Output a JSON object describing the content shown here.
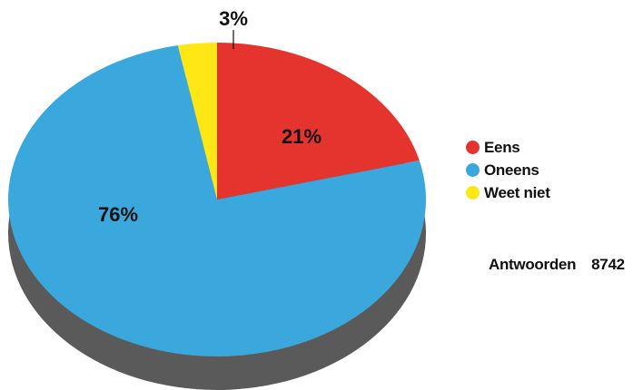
{
  "chart_data": {
    "type": "pie",
    "style": "3d",
    "slices": [
      {
        "label": "Eens",
        "value": 21,
        "display": "21%",
        "color": "#e5342d"
      },
      {
        "label": "Oneens",
        "value": 76,
        "display": "76%",
        "color": "#3aa8dc"
      },
      {
        "label": "Weet niet",
        "value": 3,
        "display": "3%",
        "color": "#ffe716"
      }
    ],
    "legend_position": "right",
    "shadow_color": "#5a5a5a"
  },
  "responses": {
    "label": "Antwoorden",
    "count": "8742"
  }
}
